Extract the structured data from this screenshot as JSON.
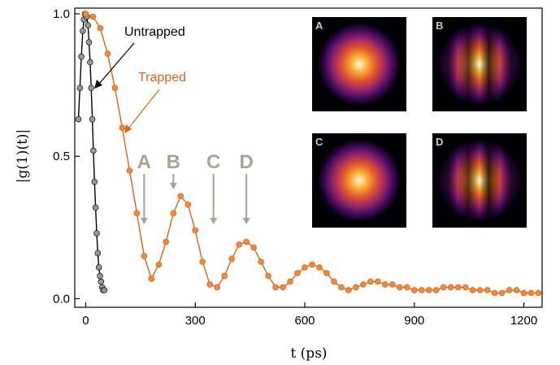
{
  "chart_data": {
    "type": "scatter",
    "xlabel": "t (ps)",
    "ylabel": "|g(1)(t)|",
    "xlim": [
      -30,
      1250
    ],
    "ylim": [
      -0.03,
      1.02
    ],
    "xticks": [
      0,
      300,
      600,
      900,
      1200
    ],
    "yticks": [
      0.0,
      0.5,
      1.0
    ],
    "xtick_labels": [
      "0",
      "300",
      "600",
      "900",
      "1200"
    ],
    "ytick_labels": [
      "0.0",
      "0.5",
      "1.0"
    ],
    "grid": false,
    "colors": {
      "untrapped": "#000000",
      "untrapped_fill": "#999999",
      "trapped": "#d8651a",
      "trapped_fill": "#f08a3c",
      "marker_text": "#a8a393"
    },
    "series": [
      {
        "name": "Untrapped",
        "x": [
          -20,
          -16,
          -12,
          -8,
          -5,
          -2,
          0,
          3,
          6,
          9,
          12,
          15,
          18,
          21,
          24,
          27,
          30,
          33,
          36,
          39,
          42,
          45,
          48,
          51
        ],
        "y": [
          0.63,
          0.74,
          0.85,
          0.94,
          0.98,
          1.0,
          1.0,
          0.99,
          0.96,
          0.9,
          0.83,
          0.74,
          0.63,
          0.52,
          0.41,
          0.32,
          0.23,
          0.16,
          0.11,
          0.08,
          0.06,
          0.04,
          0.03,
          0.03
        ]
      },
      {
        "name": "Trapped",
        "x": [
          0,
          20,
          40,
          60,
          80,
          100,
          120,
          140,
          160,
          180,
          200,
          220,
          240,
          260,
          280,
          300,
          320,
          340,
          360,
          380,
          400,
          420,
          440,
          460,
          480,
          500,
          520,
          540,
          560,
          580,
          600,
          620,
          640,
          660,
          680,
          700,
          720,
          740,
          760,
          780,
          800,
          820,
          840,
          860,
          880,
          900,
          920,
          940,
          960,
          980,
          1000,
          1020,
          1040,
          1060,
          1080,
          1100,
          1120,
          1140,
          1160,
          1180,
          1200,
          1220,
          1240
        ],
        "y": [
          1.0,
          0.99,
          0.95,
          0.86,
          0.74,
          0.6,
          0.45,
          0.3,
          0.15,
          0.07,
          0.12,
          0.2,
          0.3,
          0.36,
          0.33,
          0.24,
          0.13,
          0.05,
          0.04,
          0.08,
          0.14,
          0.19,
          0.2,
          0.18,
          0.13,
          0.08,
          0.04,
          0.04,
          0.06,
          0.09,
          0.11,
          0.12,
          0.11,
          0.09,
          0.06,
          0.04,
          0.03,
          0.04,
          0.05,
          0.06,
          0.06,
          0.05,
          0.05,
          0.04,
          0.04,
          0.03,
          0.03,
          0.03,
          0.03,
          0.04,
          0.04,
          0.04,
          0.04,
          0.03,
          0.03,
          0.03,
          0.02,
          0.02,
          0.03,
          0.03,
          0.02,
          0.02,
          0.02
        ]
      }
    ],
    "annotations": [
      {
        "id": "untrapped",
        "text": "Untrapped",
        "color": "#000000"
      },
      {
        "id": "trapped",
        "text": "Trapped",
        "color": "#d8651a"
      }
    ],
    "markers": [
      {
        "label": "A",
        "x": 160
      },
      {
        "label": "B",
        "x": 240
      },
      {
        "label": "C",
        "x": 350
      },
      {
        "label": "D",
        "x": 440
      }
    ],
    "panels": [
      {
        "label": "A",
        "fringes": false
      },
      {
        "label": "B",
        "fringes": true
      },
      {
        "label": "C",
        "fringes": false
      },
      {
        "label": "D",
        "fringes": true
      }
    ]
  }
}
